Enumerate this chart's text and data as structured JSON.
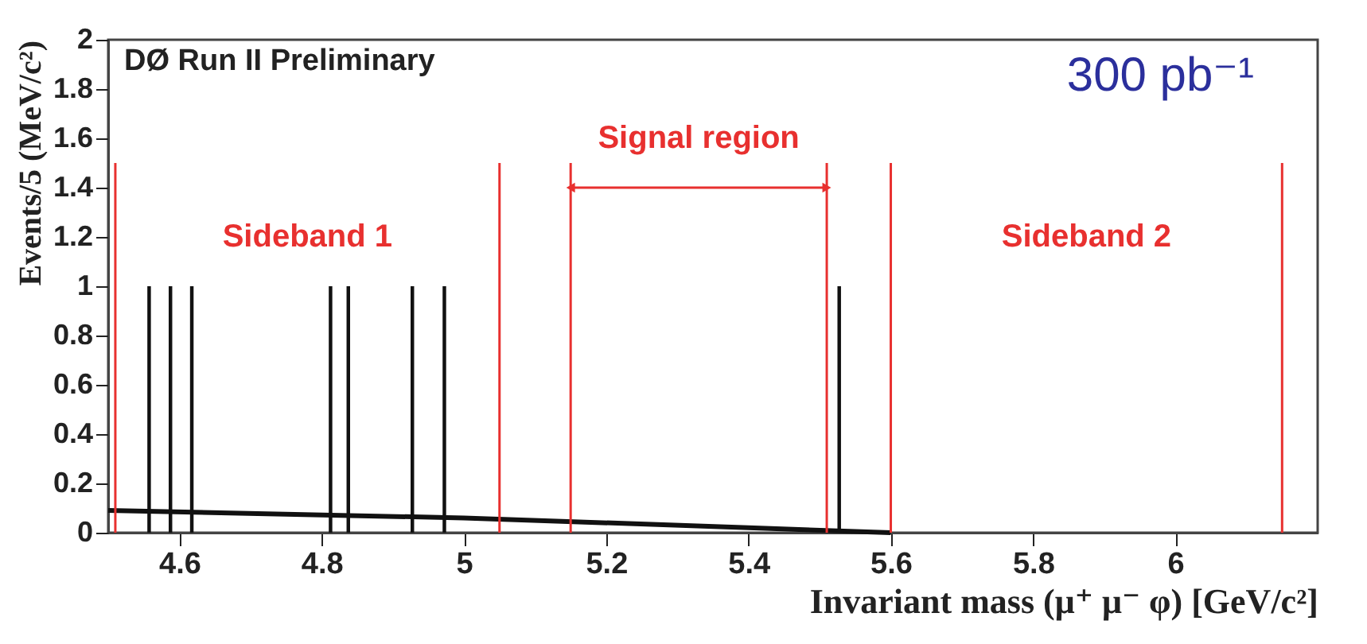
{
  "chart_data": {
    "type": "histogram",
    "xlabel": "Invariant mass (μ⁺ μ⁻ φ) [GeV/c²]",
    "ylabel": "Events/5 (MeV/c²)",
    "series": [
      {
        "color": "#111111",
        "bins": [
          4.555,
          4.56,
          4.585,
          4.59,
          4.615,
          4.62,
          4.81,
          4.815,
          4.835,
          4.84,
          4.925,
          4.93,
          4.97,
          4.975,
          5.525,
          5.53
        ],
        "values": [
          1,
          0,
          1,
          0,
          1,
          0,
          1,
          0,
          1,
          0,
          1,
          0,
          1,
          0,
          1
        ]
      },
      {
        "type": "line",
        "color": "#111111",
        "x": [
          4.5,
          5.0,
          5.4,
          5.6
        ],
        "values": [
          0.09,
          0.06,
          0.02,
          0.0
        ]
      }
    ],
    "xlim": [
      4.5,
      6.2
    ],
    "xticks": [
      4.6,
      4.8,
      {
        "value": 5,
        "label": "5"
      },
      5.2,
      5.4,
      5.6,
      5.8,
      {
        "value": 6,
        "label": "6"
      }
    ],
    "ylim": [
      0,
      2
    ],
    "yticks": [
      {
        "value": 0,
        "label": "0"
      },
      0.2,
      0.4,
      0.6,
      0.8,
      {
        "value": 1,
        "label": "1"
      },
      1.2,
      1.4,
      1.6,
      1.8,
      {
        "value": 2,
        "label": "2"
      }
    ],
    "ref_lines": [
      {
        "axis": "x",
        "value": 4.51,
        "color": "#e8302f"
      },
      {
        "axis": "x",
        "value": 5.05,
        "color": "#e8302f"
      },
      {
        "axis": "x",
        "value": 5.15,
        "color": "#e8302f"
      },
      {
        "axis": "x",
        "value": 5.51,
        "color": "#e8302f"
      },
      {
        "axis": "x",
        "value": 5.6,
        "color": "#e8302f"
      },
      {
        "axis": "x",
        "value": 6.15,
        "color": "#e8302f"
      }
    ],
    "annotations": [
      "DØ Run II Preliminary",
      "300 pb⁻¹",
      "Sideband 1",
      "Signal region",
      "Sideband 2"
    ],
    "grid": false
  }
}
